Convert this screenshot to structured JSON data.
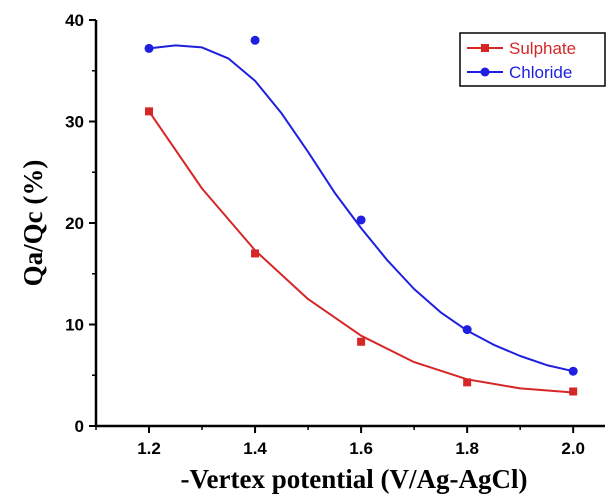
{
  "chart_data": {
    "type": "scatter",
    "xlabel": "-Vertex potential (V/Ag-AgCl)",
    "ylabel": "Qa/Qc (%)",
    "xlim": [
      1.1,
      2.06
    ],
    "ylim": [
      0,
      40
    ],
    "x_ticks": [
      "1.2",
      "1.4",
      "1.6",
      "1.8",
      "2.0"
    ],
    "y_ticks": [
      "0",
      "10",
      "20",
      "30",
      "40"
    ],
    "grid": false,
    "legend_position": "top-right",
    "series": [
      {
        "name": "Sulphate",
        "color": "#d62728",
        "marker": "square",
        "x": [
          1.2,
          1.4,
          1.6,
          1.8,
          2.0
        ],
        "y": [
          31.0,
          17.0,
          8.3,
          4.3,
          3.4
        ],
        "fit": [
          [
            1.2,
            31.0
          ],
          [
            1.3,
            23.4
          ],
          [
            1.4,
            17.3
          ],
          [
            1.5,
            12.5
          ],
          [
            1.6,
            8.9
          ],
          [
            1.7,
            6.3
          ],
          [
            1.8,
            4.6
          ],
          [
            1.9,
            3.7
          ],
          [
            2.0,
            3.3
          ]
        ]
      },
      {
        "name": "Chloride",
        "color": "#1f1fe0",
        "marker": "circle",
        "x": [
          1.2,
          1.4,
          1.6,
          1.8,
          2.0
        ],
        "y": [
          37.2,
          38.0,
          20.3,
          9.5,
          5.4
        ],
        "fit": [
          [
            1.2,
            37.2
          ],
          [
            1.25,
            37.5
          ],
          [
            1.3,
            37.3
          ],
          [
            1.35,
            36.2
          ],
          [
            1.4,
            34.0
          ],
          [
            1.45,
            30.8
          ],
          [
            1.5,
            27.0
          ],
          [
            1.55,
            23.0
          ],
          [
            1.6,
            19.5
          ],
          [
            1.65,
            16.3
          ],
          [
            1.7,
            13.5
          ],
          [
            1.75,
            11.2
          ],
          [
            1.8,
            9.4
          ],
          [
            1.85,
            8.0
          ],
          [
            1.9,
            6.9
          ],
          [
            1.95,
            6.0
          ],
          [
            2.0,
            5.4
          ]
        ]
      }
    ]
  }
}
